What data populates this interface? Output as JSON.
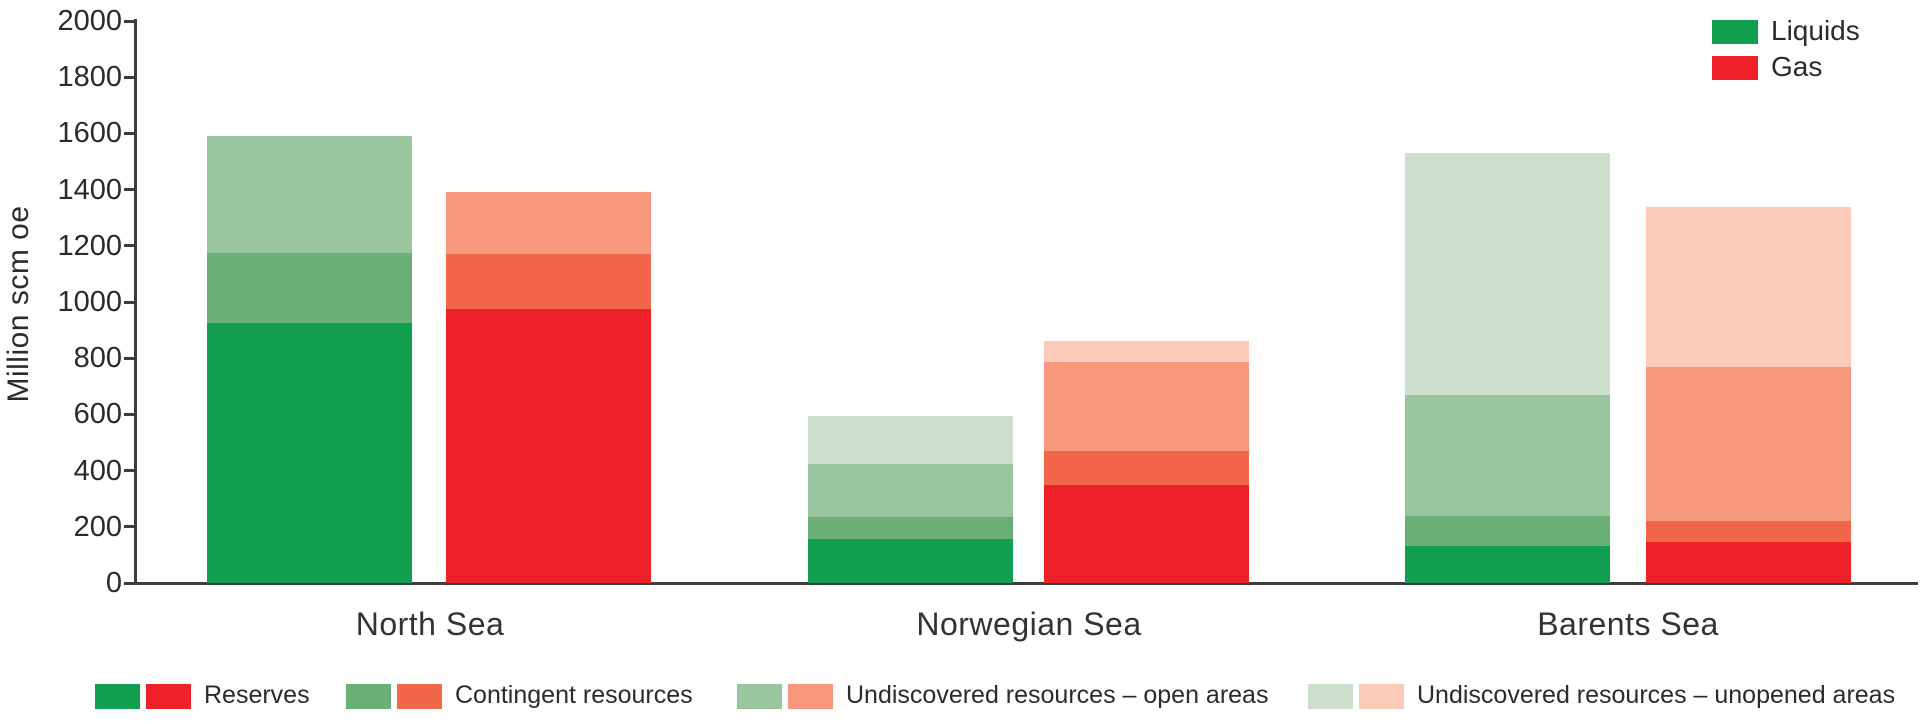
{
  "chart_data": {
    "type": "bar",
    "stacked": true,
    "title": "",
    "ylabel": "Million scm oe",
    "xlabel": "",
    "ylim": [
      0,
      2000
    ],
    "yticks": [
      0,
      200,
      400,
      600,
      800,
      1000,
      1200,
      1400,
      1600,
      1800,
      2000
    ],
    "grid": false,
    "categories": [
      "North Sea",
      "Norwegian Sea",
      "Barents Sea"
    ],
    "bars_per_category": [
      "Liquids",
      "Gas"
    ],
    "stack_levels": [
      "Reserves",
      "Contingent resources",
      "Undiscovered resources – open areas",
      "Undiscovered resources – unopened areas"
    ],
    "series": [
      {
        "name": "Liquids — Reserves",
        "values": [
          925,
          155,
          130
        ]
      },
      {
        "name": "Liquids — Contingent resources",
        "values": [
          250,
          80,
          110
        ]
      },
      {
        "name": "Liquids — Undiscovered resources – open areas",
        "values": [
          415,
          190,
          430
        ]
      },
      {
        "name": "Liquids — Undiscovered resources – unopened areas",
        "values": [
          0,
          170,
          860
        ]
      },
      {
        "name": "Gas — Reserves",
        "values": [
          975,
          350,
          145
        ]
      },
      {
        "name": "Gas — Contingent resources",
        "values": [
          195,
          120,
          75
        ]
      },
      {
        "name": "Gas — Undiscovered resources – open areas",
        "values": [
          220,
          315,
          550
        ]
      },
      {
        "name": "Gas — Undiscovered resources – unopened areas",
        "values": [
          0,
          75,
          570
        ]
      }
    ],
    "totals": {
      "liquids": [
        1590,
        595,
        1530
      ],
      "gas": [
        1390,
        860,
        1340
      ]
    },
    "legend_top": {
      "position": "upper right",
      "items": [
        "Liquids",
        "Gas"
      ]
    },
    "legend_bottom": {
      "position": "below chart",
      "items": [
        "Reserves",
        "Contingent resources",
        "Undiscovered resources – open areas",
        "Undiscovered resources – unopened areas"
      ]
    },
    "colors": {
      "liquids_levels": [
        "#119e50",
        "#69af76",
        "#98c59e",
        "#cde0cd"
      ],
      "gas_levels": [
        "#ed2127",
        "#f2674a",
        "#f6977e",
        "#fbcab8"
      ],
      "axis": "#3d3d3d",
      "text": "#2b2b2b"
    }
  }
}
